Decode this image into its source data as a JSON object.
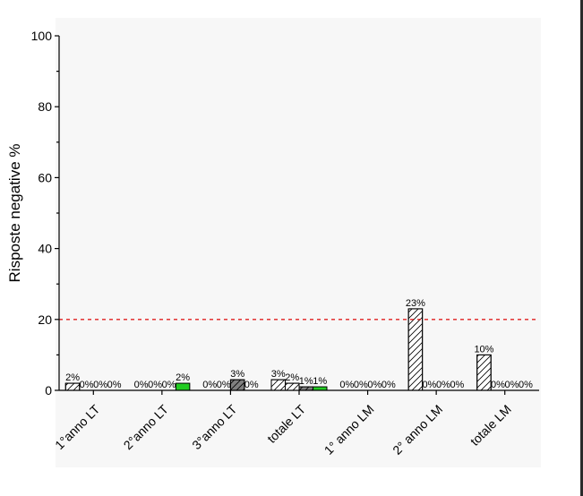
{
  "chart_data": {
    "type": "bar",
    "ylabel": "Risposte negative %",
    "xlabel": "",
    "ylim": [
      0,
      100
    ],
    "yticks": [
      0,
      20,
      40,
      60,
      80,
      100
    ],
    "categories": [
      "1°anno LT",
      "2°anno LT",
      "3°anno LT",
      "totale LT",
      "1° anno LM",
      "2° anno LM",
      "totale LM"
    ],
    "series": [
      {
        "values": [
          2,
          0,
          0,
          3,
          0,
          23,
          10
        ],
        "labels": [
          "2%",
          "0%",
          "0%",
          "3%",
          "0%",
          "23%",
          "10%"
        ],
        "fill": "#ffffff",
        "hatch": true
      },
      {
        "values": [
          0,
          0,
          0,
          2,
          0,
          0,
          0
        ],
        "labels": [
          "0%",
          "0%",
          "0%",
          "2%",
          "0%",
          "0%",
          "0%"
        ],
        "fill": "#ffffff",
        "hatch": true
      },
      {
        "values": [
          0,
          0,
          3,
          1,
          0,
          0,
          0
        ],
        "labels": [
          "0%",
          "0%",
          "3%",
          "1%",
          "0%",
          "0%",
          "0%"
        ],
        "fill": "#808080",
        "hatch": true
      },
      {
        "values": [
          0,
          2,
          0,
          1,
          0,
          0,
          0
        ],
        "labels": [
          "0%",
          "2%",
          "0%",
          "1%",
          "0%",
          "0%",
          "0%"
        ],
        "fill": "#22cc22",
        "hatch": false
      }
    ],
    "reference_line": {
      "y": 20,
      "color": "#e02020",
      "style": "dashed"
    },
    "grid": false,
    "legend": "none"
  }
}
